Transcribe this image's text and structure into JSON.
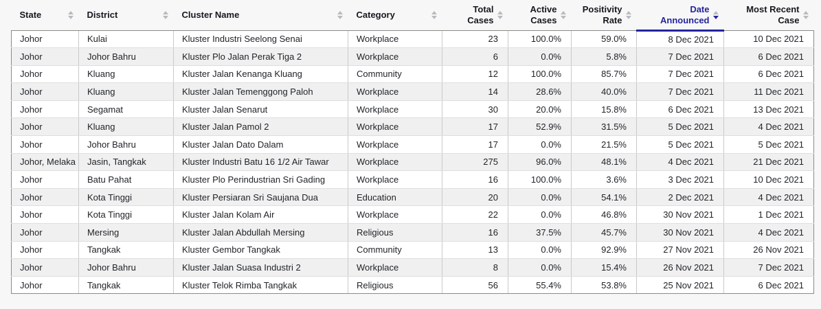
{
  "colors": {
    "accent_sort": "#24249c",
    "inactive_sort_arrow": "#b9b9c1",
    "row_stripe": "#f0f0f0"
  },
  "sort": {
    "column": "Date Announced",
    "direction": "desc"
  },
  "table": {
    "columns": [
      {
        "label": "State",
        "align": "left",
        "sorted": false
      },
      {
        "label": "District",
        "align": "left",
        "sorted": false
      },
      {
        "label": "Cluster Name",
        "align": "left",
        "sorted": false
      },
      {
        "label": "Category",
        "align": "left",
        "sorted": false
      },
      {
        "label": "Total\nCases",
        "align": "right",
        "sorted": false
      },
      {
        "label": "Active\nCases",
        "align": "right",
        "sorted": false
      },
      {
        "label": "Positivity\nRate",
        "align": "right",
        "sorted": false
      },
      {
        "label": "Date\nAnnounced",
        "align": "right",
        "sorted": true
      },
      {
        "label": "Most Recent\nCase",
        "align": "right",
        "sorted": false
      }
    ],
    "rows": [
      [
        "Johor",
        "Kulai",
        "Kluster Industri Seelong Senai",
        "Workplace",
        "23",
        "100.0%",
        "59.0%",
        "8 Dec 2021",
        "10 Dec 2021"
      ],
      [
        "Johor",
        "Johor Bahru",
        "Kluster Plo Jalan Perak Tiga 2",
        "Workplace",
        "6",
        "0.0%",
        "5.8%",
        "7 Dec 2021",
        "6 Dec 2021"
      ],
      [
        "Johor",
        "Kluang",
        "Kluster Jalan Kenanga Kluang",
        "Community",
        "12",
        "100.0%",
        "85.7%",
        "7 Dec 2021",
        "6 Dec 2021"
      ],
      [
        "Johor",
        "Kluang",
        "Kluster Jalan Temenggong Paloh",
        "Workplace",
        "14",
        "28.6%",
        "40.0%",
        "7 Dec 2021",
        "11 Dec 2021"
      ],
      [
        "Johor",
        "Segamat",
        "Kluster Jalan Senarut",
        "Workplace",
        "30",
        "20.0%",
        "15.8%",
        "6 Dec 2021",
        "13 Dec 2021"
      ],
      [
        "Johor",
        "Kluang",
        "Kluster Jalan Pamol 2",
        "Workplace",
        "17",
        "52.9%",
        "31.5%",
        "5 Dec 2021",
        "4 Dec 2021"
      ],
      [
        "Johor",
        "Johor Bahru",
        "Kluster Jalan Dato Dalam",
        "Workplace",
        "17",
        "0.0%",
        "21.5%",
        "5 Dec 2021",
        "5 Dec 2021"
      ],
      [
        "Johor, Melaka",
        "Jasin, Tangkak",
        "Kluster Industri Batu 16 1/2 Air Tawar",
        "Workplace",
        "275",
        "96.0%",
        "48.1%",
        "4 Dec 2021",
        "21 Dec 2021"
      ],
      [
        "Johor",
        "Batu Pahat",
        "Kluster Plo Perindustrian Sri Gading",
        "Workplace",
        "16",
        "100.0%",
        "3.6%",
        "3 Dec 2021",
        "10 Dec 2021"
      ],
      [
        "Johor",
        "Kota Tinggi",
        "Kluster Persiaran Sri Saujana Dua",
        "Education",
        "20",
        "0.0%",
        "54.1%",
        "2 Dec 2021",
        "4 Dec 2021"
      ],
      [
        "Johor",
        "Kota Tinggi",
        "Kluster Jalan Kolam Air",
        "Workplace",
        "22",
        "0.0%",
        "46.8%",
        "30 Nov 2021",
        "1 Dec 2021"
      ],
      [
        "Johor",
        "Mersing",
        "Kluster Jalan Abdullah Mersing",
        "Religious",
        "16",
        "37.5%",
        "45.7%",
        "30 Nov 2021",
        "4 Dec 2021"
      ],
      [
        "Johor",
        "Tangkak",
        "Kluster Gembor Tangkak",
        "Community",
        "13",
        "0.0%",
        "92.9%",
        "27 Nov 2021",
        "26 Nov 2021"
      ],
      [
        "Johor",
        "Johor Bahru",
        "Kluster Jalan Suasa Industri 2",
        "Workplace",
        "8",
        "0.0%",
        "15.4%",
        "26 Nov 2021",
        "7 Dec 2021"
      ],
      [
        "Johor",
        "Tangkak",
        "Kluster Telok Rimba Tangkak",
        "Religious",
        "56",
        "55.4%",
        "53.8%",
        "25 Nov 2021",
        "6 Dec 2021"
      ]
    ]
  }
}
